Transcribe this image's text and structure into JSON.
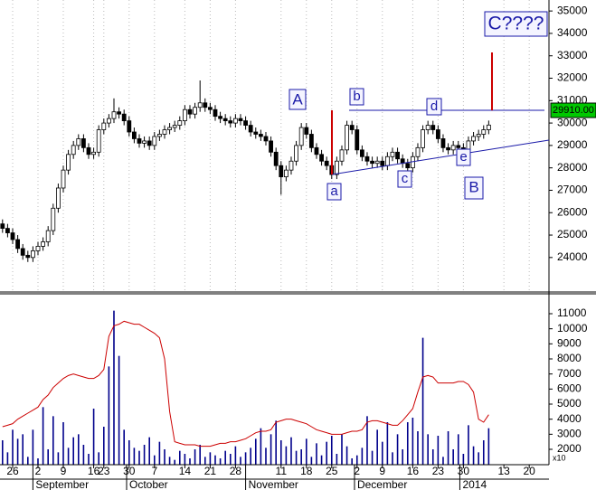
{
  "chart_data": [
    {
      "type": "candlestick",
      "annotations": [
        "A",
        "b",
        "d",
        "C????",
        "a",
        "c",
        "e",
        "B"
      ],
      "last_price_label": "29910.00",
      "up_color": "#ffffff",
      "down_color": "#000000",
      "xlim": [
        -0.5,
        107.9
      ],
      "ylim": [
        22460,
        35490
      ],
      "yticks": [
        24000,
        25000,
        26000,
        27000,
        28000,
        29000,
        30000,
        31000,
        32000,
        33000,
        34000,
        35000
      ],
      "x": [
        0,
        1,
        2,
        3,
        4,
        5,
        6,
        7,
        8,
        9,
        10,
        11,
        12,
        13,
        14,
        15,
        16,
        17,
        18,
        19,
        20,
        21,
        22,
        23,
        24,
        25,
        26,
        27,
        28,
        29,
        30,
        31,
        32,
        33,
        34,
        35,
        36,
        37,
        38,
        39,
        40,
        41,
        42,
        43,
        44,
        45,
        46,
        47,
        48,
        49,
        50,
        51,
        52,
        53,
        54,
        55,
        56,
        57,
        58,
        59,
        60,
        61,
        62,
        63,
        64,
        65,
        66,
        67,
        68,
        69,
        70,
        71,
        72,
        73,
        74,
        75,
        76,
        77,
        78,
        79,
        80,
        81,
        82,
        83,
        84,
        85,
        86,
        87,
        88,
        89,
        90,
        91,
        92,
        93,
        94,
        95,
        96
      ],
      "open": [
        25500,
        25300,
        25100,
        24800,
        24400,
        24100,
        24000,
        24300,
        24500,
        24700,
        25200,
        26200,
        27100,
        27900,
        28600,
        29000,
        29300,
        28900,
        28600,
        28700,
        29700,
        30000,
        30200,
        30500,
        30400,
        30100,
        29600,
        29300,
        29100,
        29200,
        29000,
        29400,
        29500,
        29700,
        29800,
        29900,
        30100,
        30600,
        30400,
        30700,
        30900,
        30700,
        30600,
        30300,
        30200,
        30100,
        30000,
        30200,
        30100,
        29900,
        29600,
        29500,
        29400,
        29200,
        28700,
        28100,
        27600,
        27900,
        28300,
        29000,
        29800,
        29500,
        28900,
        28600,
        28300,
        28100,
        27700,
        28300,
        28800,
        29900,
        29700,
        28800,
        28500,
        28300,
        28200,
        28300,
        28100,
        28500,
        28700,
        28400,
        28200,
        28000,
        28500,
        28900,
        29700,
        29900,
        29700,
        29300,
        28900,
        28800,
        29000,
        28900,
        28800,
        29200,
        29400,
        29500,
        29700
      ],
      "high": [
        25700,
        25500,
        25300,
        25000,
        24600,
        24300,
        24500,
        24700,
        24900,
        25400,
        26400,
        27300,
        28100,
        28800,
        29200,
        29500,
        29500,
        29100,
        28900,
        29900,
        30200,
        30400,
        31100,
        30700,
        30600,
        30300,
        29800,
        29500,
        29400,
        29400,
        29600,
        29700,
        29900,
        30000,
        30100,
        30300,
        30800,
        30800,
        30900,
        31900,
        31100,
        30900,
        30800,
        30500,
        30400,
        30300,
        30400,
        30400,
        30300,
        30100,
        29800,
        29700,
        29600,
        29400,
        28900,
        28300,
        28100,
        28500,
        29200,
        30000,
        30000,
        29700,
        29100,
        28800,
        28500,
        28300,
        28500,
        29000,
        30100,
        30100,
        29900,
        29000,
        28700,
        28500,
        28500,
        28500,
        28700,
        28900,
        28900,
        28600,
        28400,
        28700,
        29100,
        29900,
        30100,
        30100,
        29900,
        29500,
        29100,
        29200,
        29200,
        29100,
        29400,
        29600,
        29700,
        29900,
        30110
      ],
      "low": [
        25100,
        24900,
        24600,
        24200,
        23900,
        23800,
        23800,
        24100,
        24300,
        24500,
        25000,
        26000,
        26900,
        27700,
        28400,
        28800,
        28700,
        28400,
        28400,
        28500,
        29500,
        29800,
        30000,
        30200,
        29900,
        29400,
        29100,
        28900,
        28900,
        28800,
        28800,
        29200,
        29300,
        29500,
        29600,
        29700,
        29900,
        30200,
        30200,
        30500,
        30500,
        30400,
        30100,
        30000,
        29900,
        29800,
        29800,
        29900,
        29700,
        29400,
        29300,
        29200,
        29000,
        28500,
        27900,
        26800,
        27400,
        27700,
        28100,
        28800,
        29300,
        28700,
        28400,
        28100,
        27900,
        27500,
        27500,
        28100,
        28600,
        29500,
        28600,
        28300,
        28100,
        28000,
        28000,
        27900,
        27900,
        28300,
        28200,
        28000,
        27800,
        27800,
        28300,
        28700,
        29500,
        29500,
        29100,
        28700,
        28600,
        28600,
        28700,
        28600,
        28600,
        29000,
        29200,
        29300,
        29500
      ],
      "close": [
        25300,
        25100,
        24800,
        24400,
        24100,
        24000,
        24300,
        24500,
        24700,
        25200,
        26200,
        27100,
        27900,
        28600,
        29000,
        29300,
        28900,
        28600,
        28700,
        29700,
        30000,
        30200,
        30500,
        30400,
        30100,
        29600,
        29300,
        29100,
        29200,
        29000,
        29400,
        29500,
        29700,
        29800,
        29900,
        30100,
        30600,
        30400,
        30700,
        30900,
        30700,
        30600,
        30300,
        30200,
        30100,
        30000,
        30200,
        30100,
        29900,
        29600,
        29500,
        29400,
        29200,
        28700,
        28100,
        27600,
        27900,
        28300,
        29000,
        29800,
        29500,
        28900,
        28600,
        28300,
        28100,
        27700,
        28300,
        28800,
        29900,
        29700,
        28800,
        28500,
        28300,
        28200,
        28300,
        28100,
        28500,
        28700,
        28400,
        28200,
        28000,
        28500,
        28900,
        29700,
        29900,
        29700,
        29300,
        28900,
        28800,
        29000,
        28900,
        28800,
        29200,
        29400,
        29500,
        29700,
        29910
      ]
    },
    {
      "type": "bar",
      "unit_label": "x10",
      "xlim": [
        -0.5,
        107.9
      ],
      "ylim": [
        980,
        12320
      ],
      "yticks": [
        2000,
        3000,
        4000,
        5000,
        6000,
        7000,
        8000,
        9000,
        10000,
        11000
      ],
      "xticks": [
        {
          "value": 2,
          "label": "26"
        },
        {
          "value": 7,
          "label": "2"
        },
        {
          "value": 12,
          "label": "9"
        },
        {
          "value": 18,
          "label": "16"
        },
        {
          "value": 20,
          "label": "23"
        },
        {
          "value": 25,
          "label": "30"
        },
        {
          "value": 30,
          "label": "7"
        },
        {
          "value": 36,
          "label": "14"
        },
        {
          "value": 41,
          "label": "21"
        },
        {
          "value": 46,
          "label": "28"
        },
        {
          "value": 55,
          "label": "11"
        },
        {
          "value": 60,
          "label": "18"
        },
        {
          "value": 65,
          "label": "25"
        },
        {
          "value": 70,
          "label": "2"
        },
        {
          "value": 75,
          "label": "9"
        },
        {
          "value": 81,
          "label": "16"
        },
        {
          "value": 86,
          "label": "23"
        },
        {
          "value": 91,
          "label": "30"
        },
        {
          "value": 99,
          "label": "13"
        },
        {
          "value": 104,
          "label": "20"
        }
      ],
      "months": [
        {
          "value": 6,
          "label": "September"
        },
        {
          "value": 24.5,
          "label": "October"
        },
        {
          "value": 48,
          "label": "November"
        },
        {
          "value": 69.5,
          "label": "December"
        },
        {
          "value": 90.3,
          "label": "2014"
        }
      ],
      "x": [
        0,
        1,
        2,
        3,
        4,
        5,
        6,
        7,
        8,
        9,
        10,
        11,
        12,
        13,
        14,
        15,
        16,
        17,
        18,
        19,
        20,
        21,
        22,
        23,
        24,
        25,
        26,
        27,
        28,
        29,
        30,
        31,
        32,
        33,
        34,
        35,
        36,
        37,
        38,
        39,
        40,
        41,
        42,
        43,
        44,
        45,
        46,
        47,
        48,
        49,
        50,
        51,
        52,
        53,
        54,
        55,
        56,
        57,
        58,
        59,
        60,
        61,
        62,
        63,
        64,
        65,
        66,
        67,
        68,
        69,
        70,
        71,
        72,
        73,
        74,
        75,
        76,
        77,
        78,
        79,
        80,
        81,
        82,
        83,
        84,
        85,
        86,
        87,
        88,
        89,
        90,
        91,
        92,
        93,
        94,
        95,
        96
      ],
      "series": [
        {
          "type": "bar",
          "color": "#00008b",
          "values": [
            2600,
            1800,
            3300,
            2700,
            3000,
            1500,
            3300,
            1400,
            4800,
            2000,
            4200,
            1800,
            3800,
            2100,
            2800,
            3000,
            2300,
            1700,
            4700,
            1800,
            3500,
            7500,
            11200,
            8200,
            3300,
            2600,
            2100,
            1900,
            2300,
            2800,
            1600,
            2500,
            2000,
            1500,
            1300,
            1900,
            1700,
            1400,
            2000,
            2300,
            1500,
            1800,
            1600,
            1400,
            1900,
            1700,
            2200,
            1500,
            1800,
            2100,
            2700,
            3400,
            2100,
            3000,
            3900,
            2600,
            2200,
            2800,
            1900,
            2000,
            2700,
            1500,
            2400,
            1600,
            2500,
            2900,
            1700,
            3000,
            2200,
            1400,
            1600,
            2100,
            4200,
            1900,
            3300,
            2500,
            3800,
            1800,
            3000,
            2000,
            3800,
            4100,
            3200,
            9400,
            3000,
            2000,
            2900,
            1500,
            3200,
            2000,
            3000,
            1700,
            3600,
            2200,
            1800,
            2600,
            3400
          ]
        },
        {
          "type": "line",
          "color": "#cc0000",
          "values": [
            3500,
            3600,
            3700,
            4000,
            4200,
            4400,
            4600,
            4800,
            5300,
            5600,
            6100,
            6400,
            6700,
            6900,
            7000,
            6900,
            6800,
            6700,
            6700,
            6900,
            7300,
            9500,
            10200,
            10300,
            10500,
            10400,
            10300,
            10300,
            10100,
            9900,
            9700,
            9400,
            8000,
            4500,
            2500,
            2400,
            2300,
            2300,
            2300,
            2200,
            2200,
            2200,
            2300,
            2400,
            2400,
            2500,
            2500,
            2600,
            2700,
            2900,
            3100,
            3200,
            3200,
            3300,
            3800,
            3900,
            4000,
            4000,
            3900,
            3800,
            3700,
            3500,
            3300,
            3200,
            3100,
            3000,
            3000,
            3000,
            3100,
            3200,
            3200,
            3300,
            3800,
            3900,
            3900,
            3800,
            3700,
            3600,
            3600,
            3900,
            4300,
            4700,
            5800,
            6800,
            6900,
            6800,
            6400,
            6400,
            6400,
            6400,
            6500,
            6500,
            6300,
            5800,
            4000,
            3800,
            4300
          ]
        }
      ]
    }
  ]
}
